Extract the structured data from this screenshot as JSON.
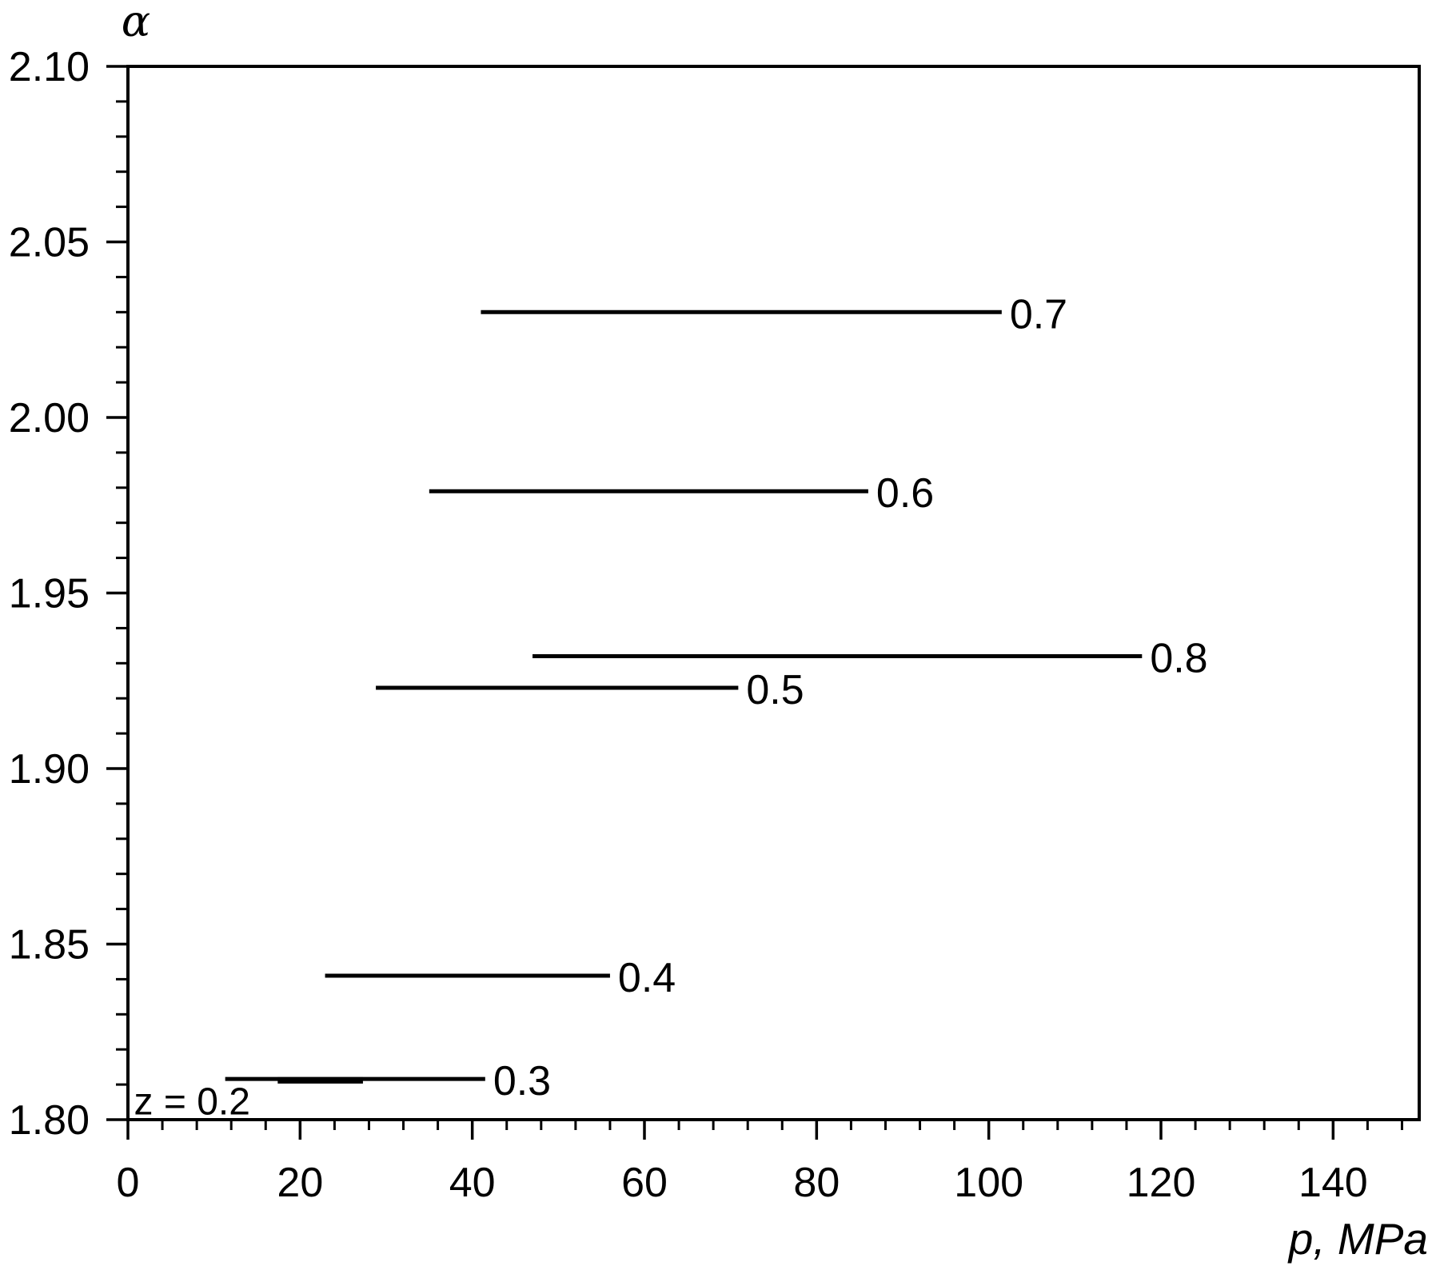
{
  "chart_data": {
    "type": "line",
    "title": "",
    "xlabel": "p, MPa",
    "ylabel": "α",
    "xlim": [
      0,
      150
    ],
    "ylim": [
      1.8,
      2.1
    ],
    "grid": false,
    "frame": true,
    "background_color": "#ffffff",
    "line_color": "#000000",
    "text_color": "#000000",
    "x_major_ticks": [
      0,
      20,
      40,
      60,
      80,
      100,
      120,
      140
    ],
    "x_tick_labels": [
      "0",
      "20",
      "40",
      "60",
      "80",
      "100",
      "120",
      "140"
    ],
    "x_minor_step": 4,
    "y_major_ticks": [
      1.8,
      1.85,
      1.9,
      1.95,
      2.0,
      2.05,
      2.1
    ],
    "y_tick_labels": [
      "1.80",
      "1.85",
      "1.90",
      "1.95",
      "2.00",
      "2.05",
      "2.10"
    ],
    "y_minor_step": 0.01,
    "series_description": "Isolines of constant coordination parameter z: horizontal segments of alpha(p) over pressure ranges in MPa",
    "series": [
      {
        "name": "z-0.2",
        "z": 0.2,
        "label": "z = 0.2",
        "alpha": 1.8112,
        "p_start": 17.4,
        "p_end": 27.3,
        "line_width": 8,
        "label_placement": "custom",
        "label_p": 0.7,
        "label_alpha": 1.806
      },
      {
        "name": "z-0.3",
        "z": 0.3,
        "label": "0.3",
        "alpha": 1.8116,
        "p_start": 11.3,
        "p_end": 41.5,
        "line_width": 5,
        "label_placement": "end"
      },
      {
        "name": "z-0.4",
        "z": 0.4,
        "label": "0.4",
        "alpha": 1.841,
        "p_start": 22.9,
        "p_end": 56.0,
        "line_width": 5,
        "label_placement": "end"
      },
      {
        "name": "z-0.5",
        "z": 0.5,
        "label": "0.5",
        "alpha": 1.923,
        "p_start": 28.8,
        "p_end": 70.9,
        "line_width": 5,
        "label_placement": "end"
      },
      {
        "name": "z-0.6",
        "z": 0.6,
        "label": "0.6",
        "alpha": 1.979,
        "p_start": 35.0,
        "p_end": 86.0,
        "line_width": 5,
        "label_placement": "end"
      },
      {
        "name": "z-0.7",
        "z": 0.7,
        "label": "0.7",
        "alpha": 2.03,
        "p_start": 41.0,
        "p_end": 101.5,
        "line_width": 5,
        "label_placement": "end"
      },
      {
        "name": "z-0.8",
        "z": 0.8,
        "label": "0.8",
        "alpha": 1.932,
        "p_start": 47.0,
        "p_end": 117.8,
        "line_width": 5,
        "label_placement": "end"
      }
    ]
  }
}
